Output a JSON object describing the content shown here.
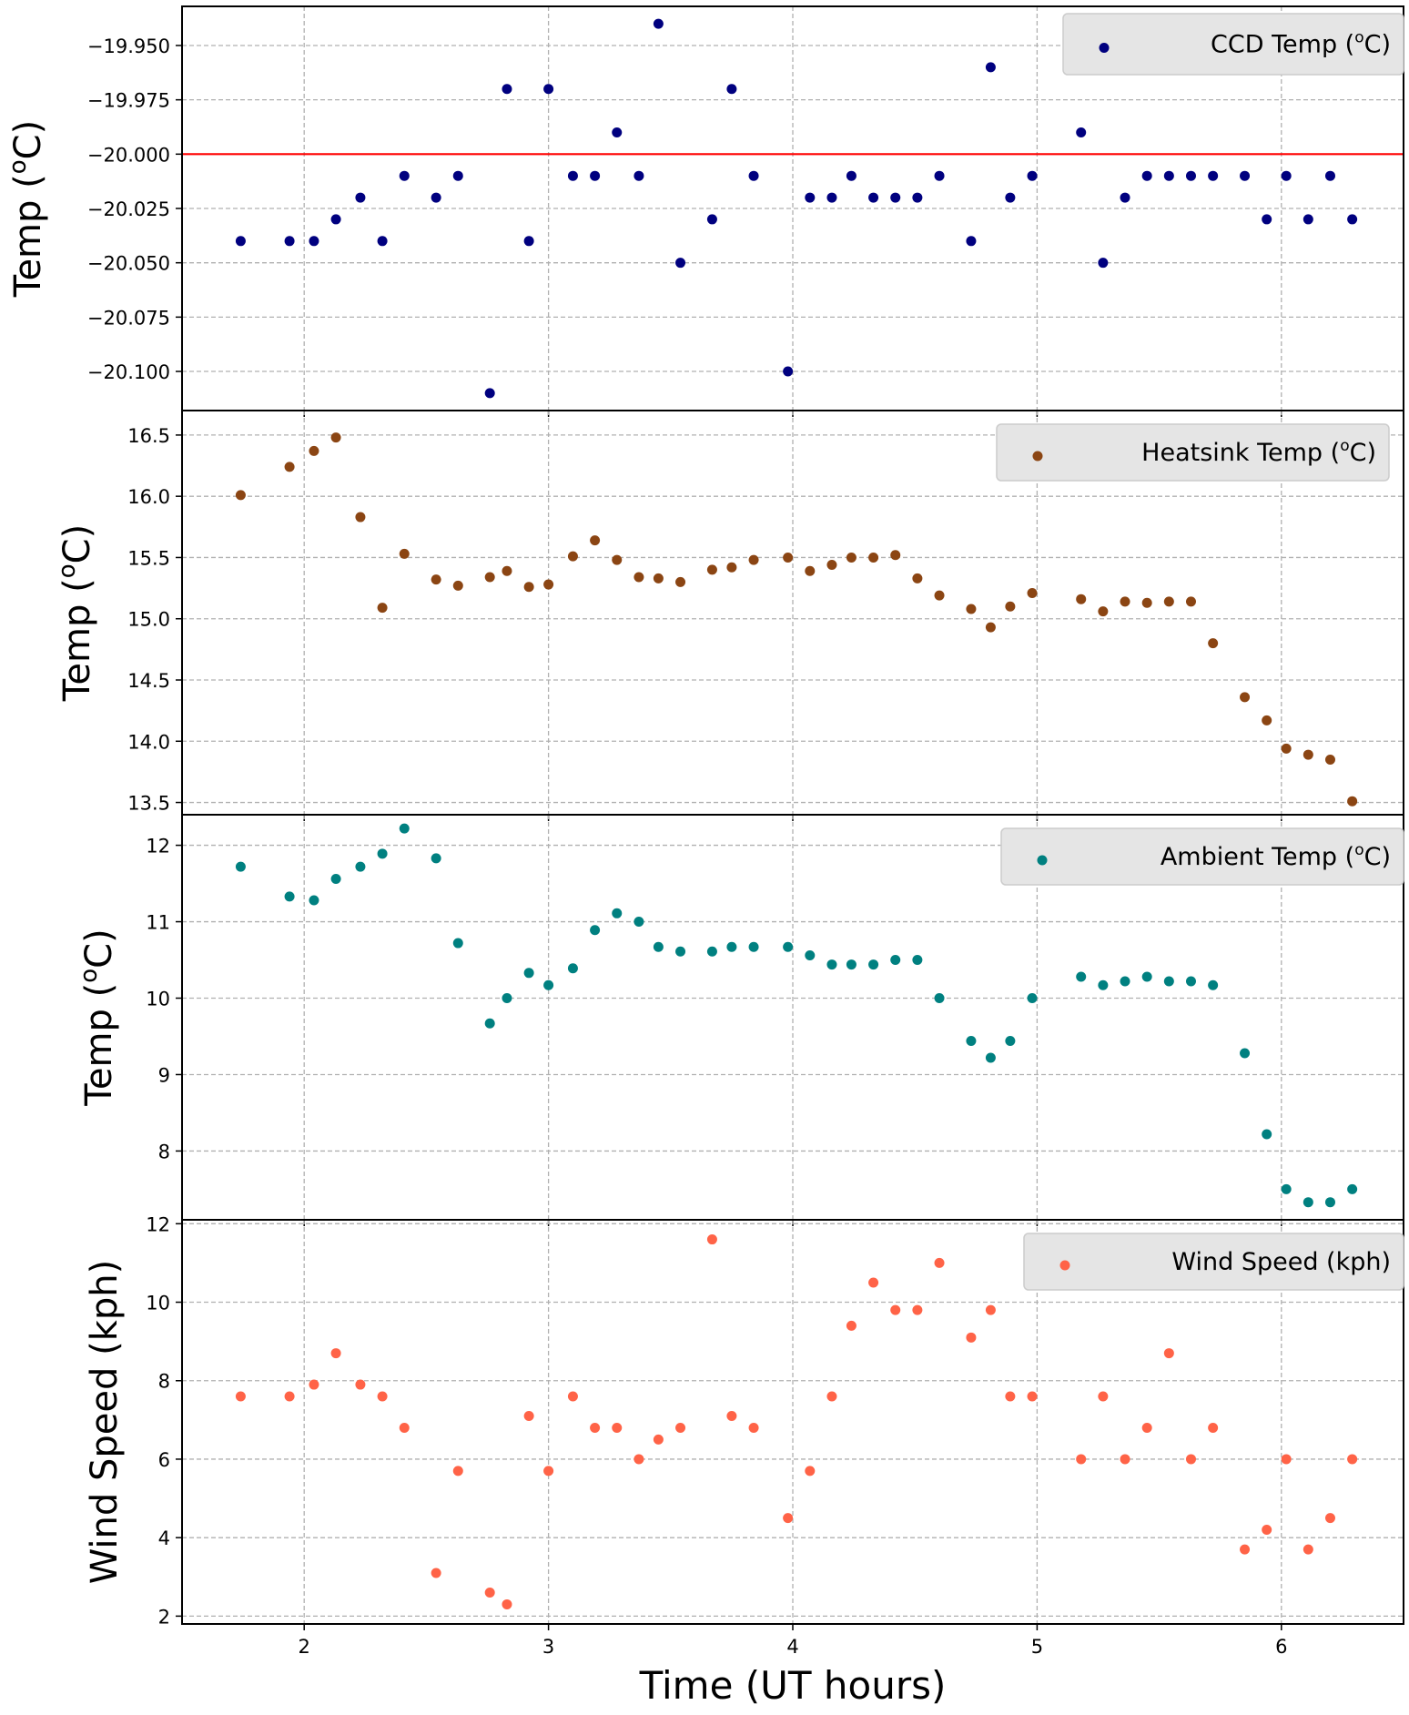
{
  "chart_data": {
    "type": "scatter",
    "xlabel": "Time (UT hours)",
    "xlim": [
      1.5,
      6.5
    ],
    "xticks": [
      2,
      3,
      4,
      5,
      6
    ],
    "grid": true,
    "legend_position": "top-right",
    "x": [
      1.74,
      1.94,
      2.04,
      2.13,
      2.23,
      2.32,
      2.41,
      2.54,
      2.63,
      2.76,
      2.83,
      2.92,
      3.0,
      3.1,
      3.19,
      3.28,
      3.37,
      3.45,
      3.54,
      3.67,
      3.75,
      3.84,
      3.98,
      4.07,
      4.16,
      4.24,
      4.33,
      4.42,
      4.51,
      4.6,
      4.73,
      4.81,
      4.89,
      4.98,
      5.18,
      5.27,
      5.36,
      5.45,
      5.54,
      5.63,
      5.72,
      5.85,
      5.94,
      6.02,
      6.11,
      6.2,
      6.29
    ],
    "panels": [
      {
        "ylabel": "Temp (°C)",
        "ylabel_html": "Temp (<sup>o</sup>C)",
        "ylim": [
          -20.118,
          -19.932
        ],
        "yticks": [
          -19.95,
          -19.975,
          -20.0,
          -20.025,
          -20.05,
          -20.075,
          -20.1
        ],
        "ytick_labels": [
          "−19.950",
          "−19.975",
          "−20.000",
          "−20.025",
          "−20.050",
          "−20.075",
          "−20.100"
        ],
        "reference_line": {
          "y": -20.0,
          "color": "#ff0000"
        },
        "series": [
          {
            "name": "CCD Temp (°C)",
            "legend_main": "CCD Temp (",
            "legend_sup": "o",
            "legend_tail": "C)",
            "color": "#00007f",
            "x": [
              1.74,
              1.94,
              2.04,
              2.13,
              2.23,
              2.32,
              2.41,
              2.54,
              2.63,
              2.76,
              2.83,
              2.92,
              3.0,
              3.1,
              3.19,
              3.28,
              3.37,
              3.45,
              3.54,
              3.67,
              3.75,
              3.84,
              3.98,
              4.07,
              4.16,
              4.24,
              4.33,
              4.42,
              4.51,
              4.6,
              4.73,
              4.81,
              4.89,
              4.98,
              5.18,
              5.27,
              5.36,
              5.45,
              5.54,
              5.63,
              5.72,
              5.85,
              5.94,
              6.02,
              6.11,
              6.2,
              6.29
            ],
            "values": [
              -20.04,
              -20.04,
              -20.04,
              -20.03,
              -20.02,
              -20.04,
              -20.01,
              -20.02,
              -20.01,
              -20.11,
              -19.97,
              -20.04,
              -19.97,
              -20.01,
              -20.01,
              -19.99,
              -20.01,
              -19.94,
              -20.05,
              -20.03,
              -19.97,
              -20.01,
              -20.1,
              -20.02,
              -20.02,
              -20.01,
              -20.02,
              -20.02,
              -20.02,
              -20.01,
              -20.04,
              -19.96,
              -20.02,
              -20.01,
              -19.99,
              -20.05,
              -20.02,
              -20.01,
              -20.01,
              -20.01,
              -20.01,
              -20.01,
              -20.03,
              -20.01,
              -20.03,
              -20.01,
              -20.03
            ]
          }
        ]
      },
      {
        "ylabel": "Temp (°C)",
        "ylabel_html": "Temp (<sup>o</sup>C)",
        "ylim": [
          13.4,
          16.7
        ],
        "yticks": [
          13.5,
          14.0,
          14.5,
          15.0,
          15.5,
          16.0,
          16.5
        ],
        "ytick_labels": [
          "13.5",
          "14.0",
          "14.5",
          "15.0",
          "15.5",
          "16.0",
          "16.5"
        ],
        "series": [
          {
            "name": "Heatsink Temp (°C)",
            "legend_main": "Heatsink Temp (",
            "legend_sup": "o",
            "legend_tail": "C)",
            "color": "#8b4513",
            "x": [
              1.74,
              1.94,
              2.04,
              2.13,
              2.23,
              2.32,
              2.41,
              2.54,
              2.63,
              2.76,
              2.83,
              2.92,
              3.0,
              3.1,
              3.19,
              3.28,
              3.37,
              3.45,
              3.54,
              3.67,
              3.75,
              3.84,
              3.98,
              4.07,
              4.16,
              4.24,
              4.33,
              4.42,
              4.51,
              4.6,
              4.73,
              4.81,
              4.89,
              4.98,
              5.18,
              5.27,
              5.36,
              5.45,
              5.54,
              5.63,
              5.72,
              5.85,
              5.94,
              6.02,
              6.11,
              6.2,
              6.29
            ],
            "values": [
              16.01,
              16.24,
              16.37,
              16.48,
              15.83,
              15.09,
              15.53,
              15.32,
              15.27,
              15.34,
              15.39,
              15.26,
              15.28,
              15.51,
              15.64,
              15.48,
              15.34,
              15.33,
              15.3,
              15.4,
              15.42,
              15.48,
              15.5,
              15.39,
              15.44,
              15.5,
              15.5,
              15.52,
              15.33,
              15.19,
              15.08,
              14.93,
              15.1,
              15.21,
              15.16,
              15.06,
              15.14,
              15.13,
              15.14,
              15.14,
              14.8,
              14.36,
              14.17,
              13.94,
              13.89,
              13.85,
              13.51
            ]
          }
        ]
      },
      {
        "ylabel": "Temp (°C)",
        "ylabel_html": "Temp (<sup>o</sup>C)",
        "ylim": [
          7.1,
          12.4
        ],
        "yticks": [
          8,
          9,
          10,
          11,
          12
        ],
        "ytick_labels": [
          "8",
          "9",
          "10",
          "11",
          "12"
        ],
        "series": [
          {
            "name": "Ambient Temp (°C)",
            "legend_main": "Ambient Temp (",
            "legend_sup": "o",
            "legend_tail": "C)",
            "color": "#008080",
            "x": [
              1.74,
              1.94,
              2.04,
              2.13,
              2.23,
              2.32,
              2.41,
              2.54,
              2.63,
              2.76,
              2.83,
              2.92,
              3.0,
              3.1,
              3.19,
              3.28,
              3.37,
              3.45,
              3.54,
              3.67,
              3.75,
              3.84,
              3.98,
              4.07,
              4.16,
              4.24,
              4.33,
              4.42,
              4.51,
              4.6,
              4.73,
              4.81,
              4.89,
              4.98,
              5.18,
              5.27,
              5.36,
              5.45,
              5.54,
              5.63,
              5.72,
              5.85,
              5.94,
              6.02,
              6.11,
              6.2,
              6.29
            ],
            "values": [
              11.72,
              11.33,
              11.28,
              11.56,
              11.72,
              11.89,
              12.22,
              11.83,
              10.72,
              9.67,
              10.0,
              10.33,
              10.17,
              10.39,
              10.89,
              11.11,
              11.0,
              10.67,
              10.61,
              10.61,
              10.67,
              10.67,
              10.67,
              10.56,
              10.44,
              10.44,
              10.44,
              10.5,
              10.5,
              10.0,
              9.44,
              9.22,
              9.44,
              10.0,
              10.28,
              10.17,
              10.22,
              10.28,
              10.22,
              10.22,
              10.17,
              9.28,
              8.22,
              7.5,
              7.33,
              7.33,
              7.5
            ]
          }
        ]
      },
      {
        "ylabel": "Wind Speed (kph)",
        "ylim": [
          1.8,
          12.1
        ],
        "yticks": [
          2,
          4,
          6,
          8,
          10,
          12
        ],
        "ytick_labels": [
          "2",
          "4",
          "6",
          "8",
          "10",
          "12"
        ],
        "series": [
          {
            "name": "Wind Speed (kph)",
            "legend_main": "Wind Speed (kph)",
            "legend_sup": "",
            "legend_tail": "",
            "color": "#ff6347",
            "x": [
              1.74,
              1.94,
              2.04,
              2.13,
              2.23,
              2.32,
              2.41,
              2.54,
              2.63,
              2.76,
              2.83,
              2.92,
              3.0,
              3.1,
              3.19,
              3.28,
              3.37,
              3.45,
              3.54,
              3.67,
              3.75,
              3.84,
              3.98,
              4.07,
              4.16,
              4.24,
              4.33,
              4.42,
              4.51,
              4.6,
              4.73,
              4.81,
              4.89,
              4.98,
              5.18,
              5.27,
              5.36,
              5.45,
              5.54,
              5.63,
              5.72,
              5.85,
              5.94,
              6.02,
              6.11,
              6.2,
              6.29
            ],
            "values": [
              7.6,
              7.6,
              7.9,
              8.7,
              7.9,
              7.6,
              6.8,
              3.1,
              5.7,
              2.6,
              2.3,
              7.1,
              5.7,
              7.6,
              6.8,
              6.8,
              6.0,
              6.5,
              6.8,
              11.6,
              7.1,
              6.8,
              4.5,
              5.7,
              7.6,
              9.4,
              10.5,
              9.8,
              9.8,
              11.0,
              9.1,
              9.8,
              7.6,
              7.6,
              6.0,
              7.6,
              6.0,
              6.8,
              8.7,
              6.0,
              6.8,
              3.7,
              4.2,
              6.0,
              3.7,
              4.5,
              6.0
            ]
          }
        ]
      }
    ]
  }
}
